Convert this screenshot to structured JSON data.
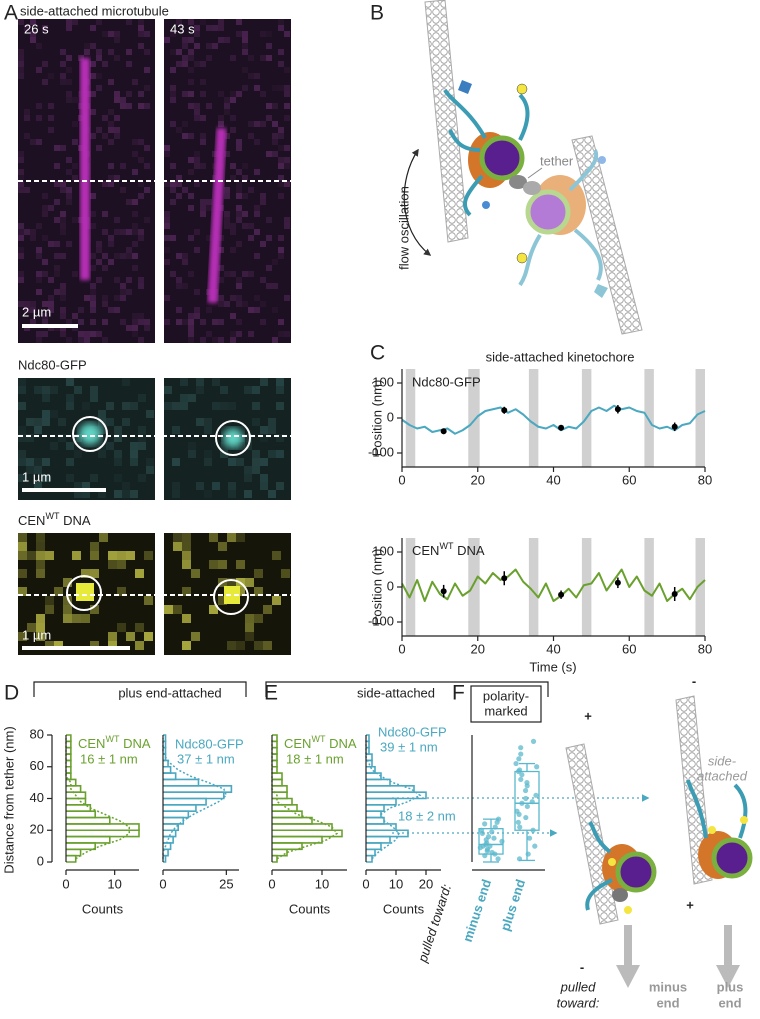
{
  "panel_a": {
    "label": "A",
    "title": "side-attached microtubule",
    "times": [
      "26 s",
      "43 s"
    ],
    "scale_bars": [
      "2 µm",
      "1 µm",
      "1 µm"
    ],
    "rows": [
      {
        "label": "Ndc80-GFP"
      },
      {
        "label": {
          "base": "CEN",
          "sup": "WT",
          "rest": " DNA"
        }
      }
    ]
  },
  "panel_b": {
    "label": "B",
    "flow": "flow oscillation",
    "tether": "tether"
  },
  "panel_c": {
    "label": "C",
    "title": "side-attached kinetochore",
    "xlabel": "Time (s)",
    "charts": [
      {
        "type": "line",
        "label": "Ndc80-GFP",
        "ylabel": "Position (nm)",
        "color": "#4aa8c0",
        "x": [
          0,
          2,
          4,
          6,
          8,
          10,
          12,
          14,
          16,
          18,
          20,
          22,
          24,
          26,
          28,
          30,
          32,
          34,
          36,
          38,
          40,
          42,
          44,
          46,
          48,
          50,
          52,
          54,
          56,
          58,
          60,
          62,
          64,
          66,
          68,
          70,
          72,
          74,
          76,
          78,
          80
        ],
        "values": [
          -5,
          -20,
          -30,
          -25,
          -40,
          -35,
          -30,
          -45,
          -35,
          -20,
          5,
          20,
          25,
          30,
          15,
          25,
          10,
          -10,
          -25,
          -30,
          -20,
          -35,
          -25,
          -30,
          -10,
          20,
          30,
          20,
          35,
          25,
          30,
          20,
          15,
          -20,
          -30,
          -25,
          -35,
          -20,
          -15,
          10,
          20
        ],
        "xlim": [
          0,
          80
        ],
        "xticks": [
          0,
          20,
          40,
          60,
          80
        ],
        "ylim": [
          -140,
          140
        ],
        "yticks": [
          -100,
          0,
          100
        ],
        "shaded": [
          [
            1,
            3.5
          ],
          [
            17.5,
            20.5
          ],
          [
            33.5,
            36
          ],
          [
            47.5,
            50
          ],
          [
            64,
            66.5
          ],
          [
            77.5,
            80
          ]
        ],
        "markers": {
          "x": [
            11,
            27,
            42,
            57,
            72
          ],
          "values": [
            -38,
            22,
            -28,
            25,
            -25
          ],
          "errors": [
            8,
            10,
            8,
            12,
            12
          ]
        }
      },
      {
        "type": "line",
        "label": {
          "base": "CEN",
          "sup": "WT",
          "rest": " DNA"
        },
        "ylabel": "Position (nm)",
        "color": "#6aa12e",
        "x": [
          0,
          2,
          4,
          6,
          8,
          10,
          12,
          14,
          16,
          18,
          20,
          22,
          24,
          26,
          28,
          30,
          32,
          34,
          36,
          38,
          40,
          42,
          44,
          46,
          48,
          50,
          52,
          54,
          56,
          58,
          60,
          62,
          64,
          66,
          68,
          70,
          72,
          74,
          76,
          78,
          80
        ],
        "values": [
          10,
          -30,
          20,
          -40,
          15,
          -20,
          -35,
          10,
          -25,
          -10,
          30,
          10,
          40,
          20,
          30,
          50,
          15,
          -5,
          -30,
          10,
          -40,
          -25,
          -5,
          -30,
          5,
          10,
          40,
          -10,
          20,
          50,
          0,
          30,
          -10,
          -25,
          10,
          -40,
          -20,
          -5,
          -35,
          0,
          20
        ],
        "xlim": [
          0,
          80
        ],
        "xticks": [
          0,
          20,
          40,
          60,
          80
        ],
        "ylim": [
          -140,
          140
        ],
        "yticks": [
          -100,
          0,
          100
        ],
        "shaded": [
          [
            1,
            3.5
          ],
          [
            17.5,
            20.5
          ],
          [
            33.5,
            36
          ],
          [
            47.5,
            50
          ],
          [
            64,
            66.5
          ],
          [
            77.5,
            80
          ]
        ],
        "markers": {
          "x": [
            11,
            27,
            42,
            57,
            72
          ],
          "values": [
            -12,
            25,
            -22,
            12,
            -20
          ],
          "errors": [
            18,
            20,
            12,
            15,
            20
          ]
        }
      }
    ]
  },
  "panel_d": {
    "label": "D",
    "bracket": "plus end-attached",
    "ylabel": "Distance from tether (nm)",
    "ylim": [
      0,
      80
    ],
    "yticks": [
      0,
      20,
      40,
      60,
      80
    ],
    "hists": [
      {
        "type": "histogram",
        "label": {
          "base": "CEN",
          "sup": "WT",
          "rest": " DNA"
        },
        "annotation": "16 ± 1 nm",
        "color": "#6aa12e",
        "bins": [
          0,
          4,
          8,
          12,
          16,
          20,
          24,
          28,
          32,
          36,
          40,
          44,
          48,
          52,
          56,
          60,
          64,
          68,
          72,
          76,
          80
        ],
        "counts": [
          2,
          3,
          6,
          9,
          15,
          15,
          9,
          6,
          5,
          4,
          4,
          3,
          2,
          1,
          1,
          1,
          1,
          1,
          1,
          1
        ],
        "fit": {
          "y": [
            2,
            6,
            10,
            14,
            18,
            22,
            26,
            30,
            34,
            38,
            42,
            46,
            50,
            54,
            58,
            62,
            66,
            70,
            74,
            78
          ],
          "counts": [
            2,
            4,
            7,
            11,
            13,
            13,
            11,
            8,
            5,
            3,
            2,
            1,
            1,
            0,
            0,
            0,
            0,
            0,
            0,
            0
          ]
        },
        "xlim": [
          0,
          15
        ],
        "xticks": [
          0,
          10
        ],
        "xlabel": "Counts"
      },
      {
        "type": "histogram",
        "label": "Ndc80-GFP",
        "annotation": "37 ± 1 nm",
        "color": "#4aa8c0",
        "bins": [
          0,
          4,
          8,
          12,
          16,
          20,
          24,
          28,
          32,
          36,
          40,
          44,
          48,
          52,
          56,
          60,
          64,
          68,
          72,
          76,
          80
        ],
        "counts": [
          1,
          2,
          3,
          4,
          5,
          6,
          8,
          10,
          13,
          17,
          24,
          27,
          14,
          5,
          3,
          2,
          1,
          1,
          1,
          1
        ],
        "fit": {
          "y": [
            2,
            6,
            10,
            14,
            18,
            22,
            26,
            30,
            34,
            38,
            42,
            46,
            50,
            54,
            58,
            62,
            66,
            70,
            74,
            78
          ],
          "counts": [
            0,
            0,
            1,
            2,
            3,
            5,
            8,
            12,
            17,
            22,
            25,
            24,
            18,
            11,
            6,
            3,
            1,
            0,
            0,
            0
          ]
        },
        "xlim": [
          0,
          30
        ],
        "xticks": [
          0,
          25
        ]
      }
    ]
  },
  "panel_e": {
    "label": "E",
    "bracket": "side-attached",
    "hists": [
      {
        "type": "histogram",
        "label": {
          "base": "CEN",
          "sup": "WT",
          "rest": " DNA"
        },
        "annotation": "18 ± 1 nm",
        "color": "#6aa12e",
        "bins": [
          0,
          4,
          8,
          12,
          16,
          20,
          24,
          28,
          32,
          36,
          40,
          44,
          48,
          52,
          56,
          60,
          64,
          68,
          72,
          76,
          80
        ],
        "counts": [
          1,
          3,
          6,
          10,
          14,
          12,
          8,
          6,
          5,
          4,
          3,
          3,
          2,
          2,
          1,
          1,
          1,
          1,
          1,
          1
        ],
        "fit": {
          "y": [
            2,
            6,
            10,
            14,
            18,
            22,
            26,
            30,
            34,
            38,
            42,
            46,
            50,
            54,
            58,
            62,
            66,
            70,
            74,
            78
          ],
          "counts": [
            1,
            3,
            7,
            11,
            13,
            12,
            9,
            5,
            3,
            1,
            1,
            0,
            0,
            0,
            0,
            0,
            0,
            0,
            0,
            0
          ]
        },
        "xlim": [
          0,
          15
        ],
        "xticks": [
          0,
          10
        ],
        "xlabel": "Counts"
      },
      {
        "type": "histogram",
        "label": "Ndc80-GFP",
        "annotation": "39 ± 1 nm",
        "annotation2": "18 ± 2 nm",
        "color": "#4aa8c0",
        "bins": [
          0,
          4,
          8,
          12,
          16,
          20,
          24,
          28,
          32,
          36,
          40,
          44,
          48,
          52,
          56,
          60,
          64,
          68,
          72,
          76,
          80
        ],
        "counts": [
          2,
          3,
          5,
          8,
          14,
          10,
          6,
          5,
          6,
          10,
          20,
          16,
          8,
          5,
          3,
          2,
          2,
          1,
          1,
          1
        ],
        "fit": {
          "y": [
            2,
            6,
            10,
            14,
            18,
            22,
            26,
            30,
            34,
            38,
            42,
            46,
            50,
            54,
            58,
            62,
            66,
            70,
            74,
            78
          ],
          "counts": [
            2,
            4,
            7,
            10,
            11,
            9,
            6,
            5,
            8,
            14,
            18,
            15,
            9,
            5,
            2,
            1,
            0,
            0,
            0,
            0
          ]
        },
        "xlim": [
          0,
          25
        ],
        "xticks": [
          0,
          10,
          20
        ],
        "xlabel": "Counts"
      }
    ]
  },
  "panel_f": {
    "label": "F",
    "bracket": [
      "polarity-",
      "marked"
    ],
    "type": "box",
    "color": "#5bb8cc",
    "pulled_toward": "pulled toward:",
    "categories": [
      "minus end",
      "plus end"
    ],
    "boxes": [
      {
        "whisker_low": 0,
        "q1": 5,
        "median": 11,
        "q3": 21,
        "whisker_high": 27,
        "points": [
          2,
          4,
          5,
          6,
          7,
          8,
          9,
          10,
          10,
          11,
          12,
          13,
          14,
          15,
          16,
          18,
          19,
          20,
          22,
          24,
          25,
          27
        ]
      },
      {
        "whisker_low": 1,
        "q1": 20,
        "median": 37,
        "q3": 57,
        "whisker_high": 62,
        "points": [
          2,
          5,
          10,
          15,
          20,
          22,
          25,
          28,
          30,
          32,
          35,
          37,
          38,
          40,
          42,
          45,
          48,
          50,
          52,
          55,
          57,
          58,
          60,
          62,
          65,
          68,
          72,
          76
        ]
      }
    ],
    "diagram": {
      "signs": [
        "+",
        "-",
        "-",
        "+"
      ],
      "side_attached": [
        "side-",
        "attached"
      ],
      "pulled_toward": [
        "pulled",
        "toward:"
      ],
      "ends": [
        [
          "minus",
          "end"
        ],
        [
          "plus",
          "end"
        ]
      ]
    }
  }
}
